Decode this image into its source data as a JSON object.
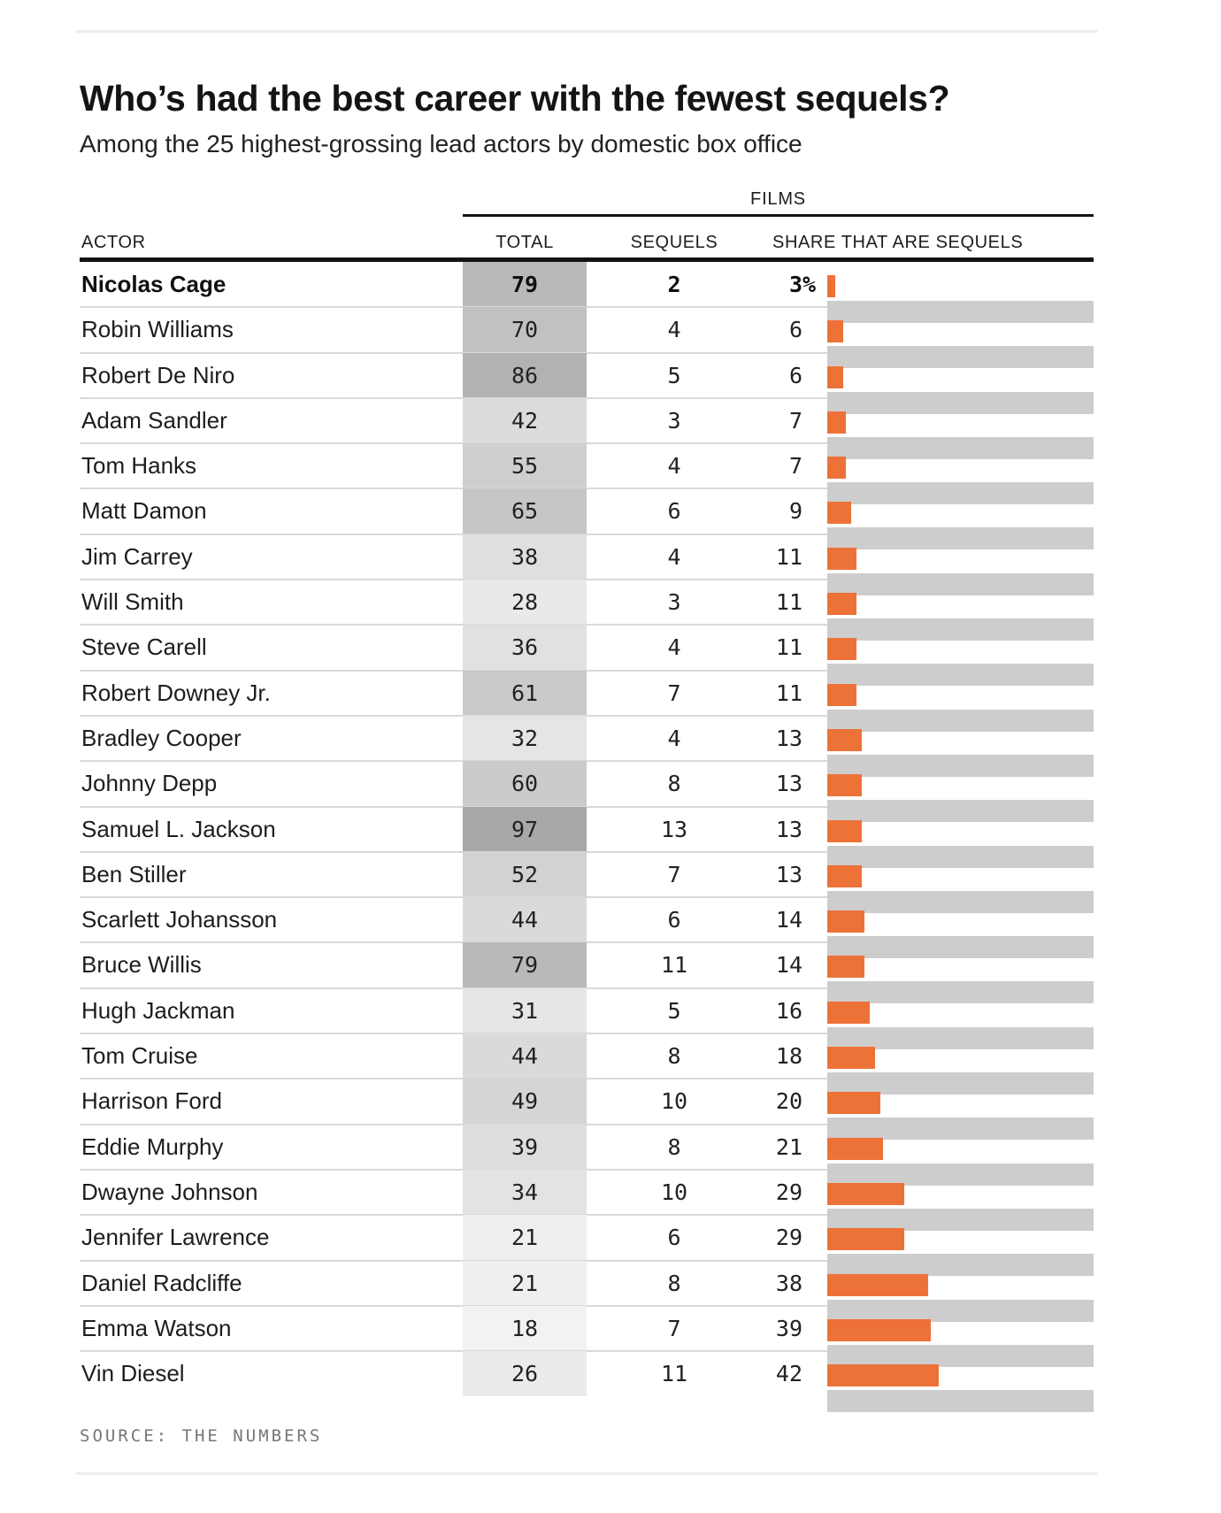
{
  "header": {
    "title": "Who’s had the best career with the fewest sequels?",
    "subtitle": "Among the 25 highest-grossing lead actors by domestic box office"
  },
  "table": {
    "films_group_label": "FILMS",
    "columns": {
      "actor": "ACTOR",
      "total": "TOTAL",
      "sequels": "SEQUELS",
      "share": "SHARE THAT ARE SEQUELS"
    }
  },
  "source_label": "SOURCE: THE NUMBERS",
  "colors": {
    "accent_orange": "#ed7238",
    "bar_track": "#cdcdcd",
    "heat_light": "#f2f2f2",
    "heat_dark": "#a8a8a8",
    "rule_black": "#131313",
    "separator": "#d9d9d9",
    "card_border": "#ececec"
  },
  "chart_data": {
    "type": "bar",
    "title": "Who’s had the best career with the fewest sequels?",
    "subtitle": "Among the 25 highest-grossing lead actors by domestic box office",
    "categories": [
      "Nicolas Cage",
      "Robin Williams",
      "Robert De Niro",
      "Adam Sandler",
      "Tom Hanks",
      "Matt Damon",
      "Jim Carrey",
      "Will Smith",
      "Steve Carell",
      "Robert Downey Jr.",
      "Bradley Cooper",
      "Johnny Depp",
      "Samuel L. Jackson",
      "Ben Stiller",
      "Scarlett Johansson",
      "Bruce Willis",
      "Hugh Jackman",
      "Tom Cruise",
      "Harrison Ford",
      "Eddie Murphy",
      "Dwayne Johnson",
      "Jennifer Lawrence",
      "Daniel Radcliffe",
      "Emma Watson",
      "Vin Diesel"
    ],
    "series": [
      {
        "name": "TOTAL",
        "values": [
          79,
          70,
          86,
          42,
          55,
          65,
          38,
          28,
          36,
          61,
          32,
          60,
          97,
          52,
          44,
          79,
          31,
          44,
          49,
          39,
          34,
          21,
          21,
          18,
          26
        ]
      },
      {
        "name": "SEQUELS",
        "values": [
          2,
          4,
          5,
          3,
          4,
          6,
          4,
          3,
          4,
          7,
          4,
          8,
          13,
          7,
          6,
          11,
          5,
          8,
          10,
          8,
          10,
          6,
          8,
          7,
          11
        ]
      },
      {
        "name": "SHARE THAT ARE SEQUELS",
        "values": [
          3,
          6,
          6,
          7,
          7,
          9,
          11,
          11,
          11,
          11,
          13,
          13,
          13,
          13,
          14,
          14,
          16,
          18,
          20,
          21,
          29,
          29,
          38,
          39,
          42
        ],
        "unit": "%",
        "unit_shown_on_first_row_only": true
      }
    ],
    "bar_axis": {
      "min": 0,
      "max": 100
    },
    "grid": false,
    "legend_position": "none",
    "highlight_category": "Nicolas Cage",
    "total_heat_domain": [
      18,
      97
    ]
  }
}
